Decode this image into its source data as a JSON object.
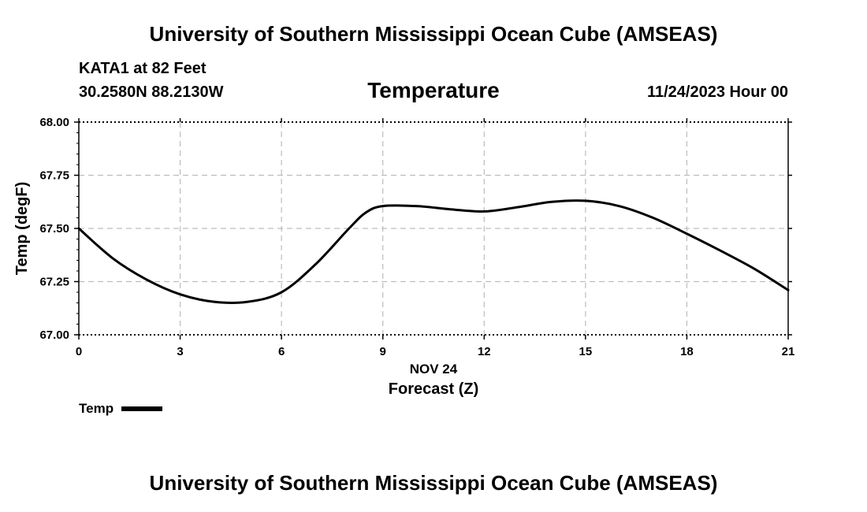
{
  "page": {
    "title": "University of Southern Mississippi Ocean Cube (AMSEAS)",
    "footer_title": "University of Southern Mississippi Ocean Cube (AMSEAS)",
    "station": "KATA1 at 82 Feet",
    "coordinates": "30.2580N  88.2130W",
    "datetime": "11/24/2023 Hour 00"
  },
  "chart_data": {
    "type": "line",
    "title": "Temperature",
    "xlabel": "Forecast (Z)",
    "xsublabel": "NOV 24",
    "ylabel": "Temp (degF)",
    "xlim": [
      0,
      21
    ],
    "ylim": [
      67.0,
      68.0
    ],
    "xticks": [
      0,
      3,
      6,
      9,
      12,
      15,
      18,
      21
    ],
    "yticks": [
      67.0,
      67.25,
      67.5,
      67.75,
      68.0
    ],
    "ytick_labels": [
      "67.00",
      "67.25",
      "67.50",
      "67.75",
      "68.00"
    ],
    "grid": true,
    "legend_position": "bottom-left",
    "series": [
      {
        "name": "Temp",
        "color": "#000000",
        "x": [
          0,
          1,
          2,
          3,
          4,
          5,
          6,
          7,
          8,
          8.5,
          9,
          10,
          11,
          12,
          13,
          14,
          15,
          16,
          17,
          18,
          19,
          20,
          21
        ],
        "values": [
          67.5,
          67.36,
          67.26,
          67.19,
          67.155,
          67.155,
          67.2,
          67.33,
          67.5,
          67.575,
          67.605,
          67.605,
          67.59,
          67.58,
          67.6,
          67.625,
          67.63,
          67.605,
          67.55,
          67.475,
          67.395,
          67.31,
          67.21
        ]
      }
    ]
  }
}
